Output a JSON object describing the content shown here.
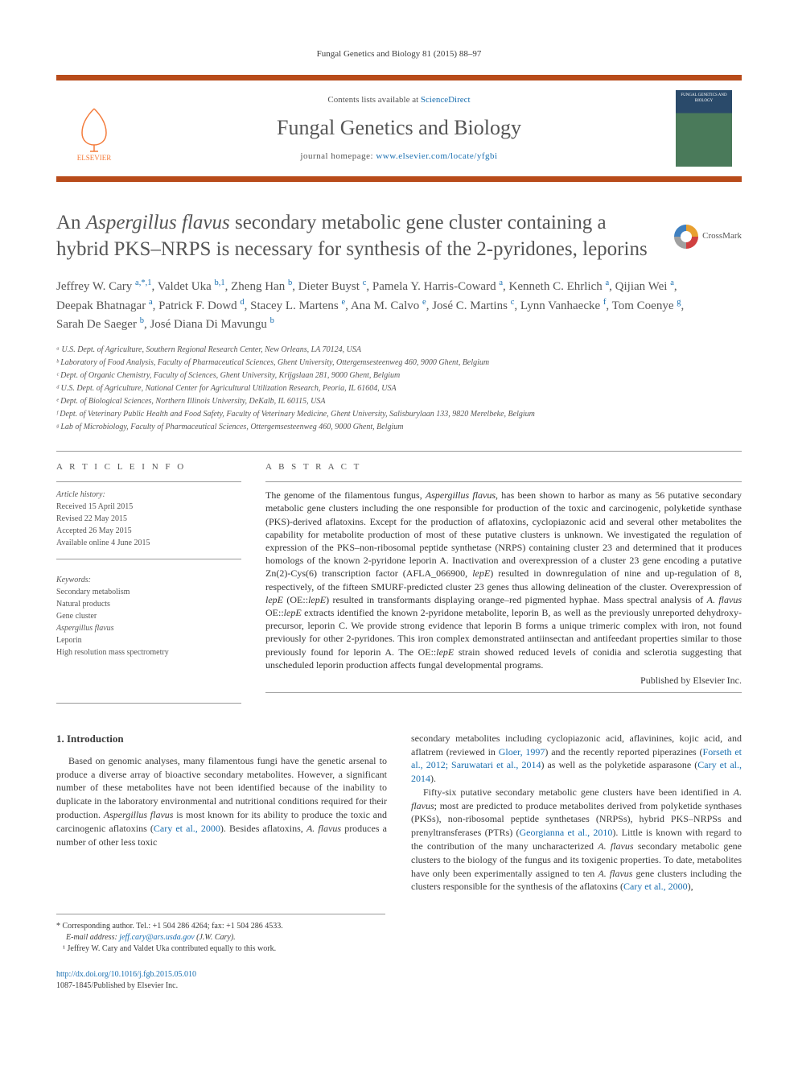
{
  "journal_ref": "Fungal Genetics and Biology 81 (2015) 88–97",
  "header": {
    "contents_prefix": "Contents lists available at ",
    "contents_link": "ScienceDirect",
    "journal_name": "Fungal Genetics and Biology",
    "homepage_prefix": "journal homepage: ",
    "homepage_url": "www.elsevier.com/locate/yfgbi",
    "elsevier_label": "ELSEVIER",
    "cover_text": "FUNGAL GENETICS AND BIOLOGY"
  },
  "crossmark_label": "CrossMark",
  "title_html": "An <em>Aspergillus flavus</em> secondary metabolic gene cluster containing a hybrid PKS–NRPS is necessary for synthesis of the 2-pyridones, leporins",
  "authors_html": "<span class='author-name'>Jeffrey W. Cary <a><sup>a,*,1</sup></a></span>, <span class='author-name'>Valdet Uka <a><sup>b,1</sup></a></span>, <span class='author-name'>Zheng Han <a><sup>b</sup></a></span>, <span class='author-name'>Dieter Buyst <a><sup>c</sup></a></span>, <span class='author-name'>Pamela Y. Harris-Coward <a><sup>a</sup></a></span>, <span class='author-name'>Kenneth C. Ehrlich <a><sup>a</sup></a></span>, <span class='author-name'>Qijian Wei <a><sup>a</sup></a></span>, <span class='author-name'>Deepak Bhatnagar <a><sup>a</sup></a></span>, <span class='author-name'>Patrick F. Dowd <a><sup>d</sup></a></span>, <span class='author-name'>Stacey L. Martens <a><sup>e</sup></a></span>, <span class='author-name'>Ana M. Calvo <a><sup>e</sup></a></span>, <span class='author-name'>José C. Martins <a><sup>c</sup></a></span>, <span class='author-name'>Lynn Vanhaecke <a><sup>f</sup></a></span>, <span class='author-name'>Tom Coenye <a><sup>g</sup></a></span>, <span class='author-name'>Sarah De Saeger <a><sup>b</sup></a></span>, <span class='author-name'>José Diana Di Mavungu <a><sup>b</sup></a></span>",
  "affiliations": [
    "ᵃ U.S. Dept. of Agriculture, Southern Regional Research Center, New Orleans, LA 70124, USA",
    "ᵇ Laboratory of Food Analysis, Faculty of Pharmaceutical Sciences, Ghent University, Ottergemsesteenweg 460, 9000 Ghent, Belgium",
    "ᶜ Dept. of Organic Chemistry, Faculty of Sciences, Ghent University, Krijgslaan 281, 9000 Ghent, Belgium",
    "ᵈ U.S. Dept. of Agriculture, National Center for Agricultural Utilization Research, Peoria, IL 61604, USA",
    "ᵉ Dept. of Biological Sciences, Northern Illinois University, DeKalb, IL 60115, USA",
    "ᶠ Dept. of Veterinary Public Health and Food Safety, Faculty of Veterinary Medicine, Ghent University, Salisburylaan 133, 9820 Merelbeke, Belgium",
    "ᵍ Lab of Microbiology, Faculty of Pharmaceutical Sciences, Ottergemsesteenweg 460, 9000 Ghent, Belgium"
  ],
  "article_info": {
    "heading": "A R T I C L E   I N F O",
    "history_label": "Article history:",
    "received": "Received 15 April 2015",
    "revised": "Revised 22 May 2015",
    "accepted": "Accepted 26 May 2015",
    "online": "Available online 4 June 2015",
    "keywords_label": "Keywords:",
    "keywords": [
      "Secondary metabolism",
      "Natural products",
      "Gene cluster",
      "Aspergillus flavus",
      "Leporin",
      "High resolution mass spectrometry"
    ]
  },
  "abstract": {
    "heading": "A B S T R A C T",
    "text_html": "The genome of the filamentous fungus, <em>Aspergillus flavus</em>, has been shown to harbor as many as 56 putative secondary metabolic gene clusters including the one responsible for production of the toxic and carcinogenic, polyketide synthase (PKS)-derived aflatoxins. Except for the production of aflatoxins, cyclopiazonic acid and several other metabolites the capability for metabolite production of most of these putative clusters is unknown. We investigated the regulation of expression of the PKS–non-ribosomal peptide synthetase (NRPS) containing cluster 23 and determined that it produces homologs of the known 2-pyridone leporin A. Inactivation and overexpression of a cluster 23 gene encoding a putative Zn(2)-Cys(6) transcription factor (AFLA_066900, <em>lepE</em>) resulted in downregulation of nine and up-regulation of 8, respectively, of the fifteen SMURF-predicted cluster 23 genes thus allowing delineation of the cluster. Overexpression of <em>lepE</em> (OE::<em>lepE</em>) resulted in transformants displaying orange–red pigmented hyphae. Mass spectral analysis of <em>A. flavus</em> OE::<em>lepE</em> extracts identified the known 2-pyridone metabolite, leporin B, as well as the previously unreported dehydroxy-precursor, leporin C. We provide strong evidence that leporin B forms a unique trimeric complex with iron, not found previously for other 2-pyridones. This iron complex demonstrated antiinsectan and antifeedant properties similar to those previously found for leporin A. The OE::<em>lepE</em> strain showed reduced levels of conidia and sclerotia suggesting that unscheduled leporin production affects fungal developmental programs.",
    "published_by": "Published by Elsevier Inc."
  },
  "body": {
    "intro_heading": "1. Introduction",
    "col1_html": "Based on genomic analyses, many filamentous fungi have the genetic arsenal to produce a diverse array of bioactive secondary metabolites. However, a significant number of these metabolites have not been identified because of the inability to duplicate in the laboratory environmental and nutritional conditions required for their production. <em>Aspergillus flavus</em> is most known for its ability to produce the toxic and carcinogenic aflatoxins (<span class='link'>Cary et al., 2000</span>). Besides aflatoxins, <em>A. flavus</em> produces a number of other less toxic",
    "col2_html": "secondary metabolites including cyclopiazonic acid, aflavinines, kojic acid, and aflatrem (reviewed in <span class='link'>Gloer, 1997</span>) and the recently reported piperazines (<span class='link'>Forseth et al., 2012; Saruwatari et al., 2014</span>) as well as the polyketide asparasone (<span class='link'>Cary et al., 2014</span>).",
    "col2_p2_html": "Fifty-six putative secondary metabolic gene clusters have been identified in <em>A. flavus</em>; most are predicted to produce metabolites derived from polyketide synthases (PKSs), non-ribosomal peptide synthetases (NRPSs), hybrid PKS–NRPSs and prenyltransferases (PTRs) (<span class='link'>Georgianna et al., 2010</span>). Little is known with regard to the contribution of the many uncharacterized <em>A. flavus</em> secondary metabolic gene clusters to the biology of the fungus and its toxigenic properties. To date, metabolites have only been experimentally assigned to ten <em>A. flavus</em> gene clusters including the clusters responsible for the synthesis of the aflatoxins (<span class='link'>Cary et al., 2000</span>),"
  },
  "footnotes": {
    "corr": "* Corresponding author. Tel.: +1 504 286 4264; fax: +1 504 286 4533.",
    "email_label": "E-mail address: ",
    "email": "jeff.cary@ars.usda.gov",
    "email_suffix": " (J.W. Cary).",
    "equal": "¹ Jeffrey W. Cary and Valdet Uka contributed equally to this work."
  },
  "doi": {
    "url": "http://dx.doi.org/10.1016/j.fgb.2015.05.010",
    "issn": "1087-1845/Published by Elsevier Inc."
  },
  "colors": {
    "accent": "#b84b1a",
    "link": "#1a6fb0",
    "elsevier": "#f47c3c"
  }
}
